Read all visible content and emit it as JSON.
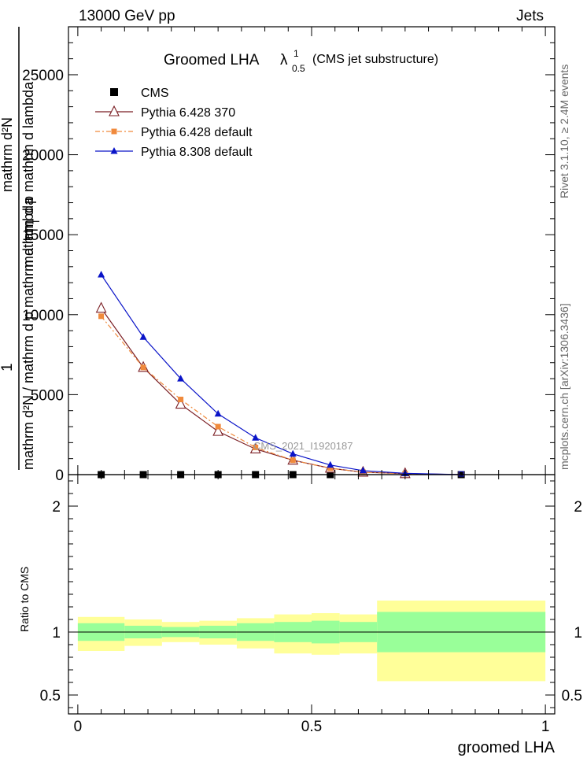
{
  "header": {
    "left": "13000 GeV pp",
    "right": "Jets"
  },
  "side_labels": {
    "rivet": "Rivet 3.1.10, ≥ 2.4M events",
    "mcplots": "mcplots.cern.ch [arXiv:1306.3436]"
  },
  "watermark": "CMS_2021_I1920187",
  "chart_data": [
    {
      "type": "line",
      "title_main": "Groomed LHA",
      "title_symbol": "λ",
      "title_sup": "1",
      "title_sub": "0.5",
      "title_note": "(CMS jet substructure)",
      "ylabel_left_num": "1",
      "ylabel_left_den": "mathrm d²N / mathrm d p   mathrm d lambda",
      "ylabel_numerator": "mathrm d²N",
      "ylabel_denominator": "mathrm d p   mathrm d lambda",
      "ylabel_sub": "T",
      "ylim": [
        0,
        28000
      ],
      "xlim": [
        -0.02,
        1.02
      ],
      "yticks": [
        0,
        5000,
        10000,
        15000,
        20000,
        25000
      ],
      "ytick_labels": [
        "0",
        "5000",
        "10000",
        "15000",
        "20000",
        "25000"
      ],
      "legend_position": "top-left",
      "series": [
        {
          "name": "CMS",
          "color": "#000000",
          "marker": "square",
          "x": [
            0.05,
            0.14,
            0.22,
            0.3,
            0.38,
            0.46,
            0.54,
            0.82
          ],
          "y": [
            0,
            0,
            0,
            0,
            0,
            0,
            0,
            0
          ]
        },
        {
          "name": "Pythia 6.428 370",
          "color": "#7b1f24",
          "marker": "triangle-open",
          "dash": "none",
          "x": [
            0.05,
            0.14,
            0.22,
            0.3,
            0.38,
            0.46,
            0.54,
            0.61,
            0.7,
            0.82
          ],
          "y": [
            10400,
            6700,
            4400,
            2700,
            1600,
            900,
            400,
            150,
            60,
            0
          ]
        },
        {
          "name": "Pythia 6.428 default",
          "color": "#f08a3c",
          "marker": "square-small",
          "dash": "6,3,2,3",
          "x": [
            0.05,
            0.14,
            0.22,
            0.3,
            0.38,
            0.46,
            0.54,
            0.61,
            0.7,
            0.82
          ],
          "y": [
            9900,
            6700,
            4700,
            3000,
            1700,
            900,
            400,
            150,
            60,
            0
          ]
        },
        {
          "name": "Pythia 8.308 default",
          "color": "#0a14c8",
          "marker": "triangle",
          "dash": "none",
          "x": [
            0.05,
            0.14,
            0.22,
            0.3,
            0.38,
            0.46,
            0.54,
            0.61,
            0.7,
            0.82
          ],
          "y": [
            12500,
            8600,
            6000,
            3800,
            2300,
            1300,
            600,
            250,
            80,
            0
          ]
        }
      ]
    },
    {
      "type": "area",
      "ylabel": "Ratio to CMS",
      "xlabel": "groomed LHA",
      "ylim": [
        0.35,
        2.25
      ],
      "xlim": [
        -0.02,
        1.02
      ],
      "yticks": [
        0.5,
        1,
        2
      ],
      "ytick_labels": [
        "0.5",
        "1",
        "2"
      ],
      "xticks": [
        0,
        0.5,
        1
      ],
      "xtick_labels": [
        "0",
        "0.5",
        "1"
      ],
      "bins": [
        0.0,
        0.1,
        0.18,
        0.26,
        0.34,
        0.42,
        0.5,
        0.56,
        0.64,
        1.0
      ],
      "stat_band_inner": {
        "color": "#99ff99",
        "low": [
          0.93,
          0.95,
          0.96,
          0.95,
          0.93,
          0.92,
          0.91,
          0.92,
          0.84
        ],
        "high": [
          1.07,
          1.05,
          1.04,
          1.05,
          1.07,
          1.08,
          1.09,
          1.08,
          1.16
        ]
      },
      "stat_band_outer": {
        "color": "#ffff99",
        "low": [
          0.85,
          0.89,
          0.92,
          0.9,
          0.87,
          0.83,
          0.82,
          0.83,
          0.61
        ],
        "high": [
          1.12,
          1.1,
          1.08,
          1.09,
          1.11,
          1.14,
          1.15,
          1.14,
          1.25
        ]
      },
      "reference_line": 1
    }
  ]
}
